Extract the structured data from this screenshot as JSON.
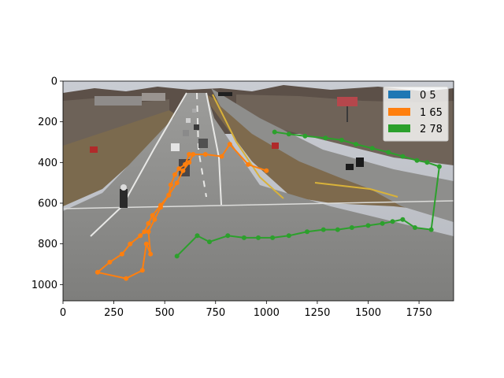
{
  "chart_data": {
    "type": "line",
    "title": "",
    "xlabel": "",
    "ylabel": "",
    "xlim": [
      0,
      1920
    ],
    "ylim": [
      1080,
      0
    ],
    "y_inverted": true,
    "background": "photo of a multi-lane highway with traffic, a motorcycle and merging ramp",
    "x_ticks": [
      "0",
      "250",
      "500",
      "750",
      "1000",
      "1250",
      "1500",
      "1750"
    ],
    "y_ticks": [
      "0",
      "200",
      "400",
      "600",
      "800",
      "1000"
    ],
    "legend_position": "top-right",
    "series": [
      {
        "name": "0 5",
        "color": "#1f77b4",
        "x": [],
        "y": []
      },
      {
        "name": "1 65",
        "color": "#ff7f0e",
        "x": [
          1000,
          910,
          820,
          780,
          700,
          620,
          600,
          570,
          550,
          530,
          520,
          480,
          440,
          420,
          400,
          380,
          330,
          290,
          230,
          170,
          310,
          390,
          410,
          430,
          420,
          450,
          480,
          520,
          560,
          590,
          620,
          640
        ],
        "y": [
          440,
          410,
          310,
          370,
          360,
          360,
          410,
          430,
          460,
          510,
          560,
          610,
          660,
          700,
          740,
          760,
          800,
          850,
          890,
          940,
          970,
          930,
          800,
          850,
          740,
          680,
          620,
          560,
          500,
          440,
          400,
          360
        ]
      },
      {
        "name": "2 78",
        "color": "#2ca02c",
        "x": [
          560,
          660,
          720,
          810,
          890,
          960,
          1030,
          1110,
          1200,
          1280,
          1350,
          1420,
          1500,
          1570,
          1620,
          1670,
          1730,
          1810,
          1850,
          1790,
          1740,
          1670,
          1600,
          1520,
          1440,
          1370,
          1290,
          1190,
          1110,
          1040
        ],
        "y": [
          860,
          760,
          790,
          760,
          770,
          770,
          770,
          760,
          740,
          730,
          730,
          720,
          710,
          700,
          690,
          680,
          720,
          730,
          420,
          400,
          390,
          370,
          350,
          330,
          310,
          290,
          280,
          270,
          260,
          250
        ]
      }
    ]
  }
}
